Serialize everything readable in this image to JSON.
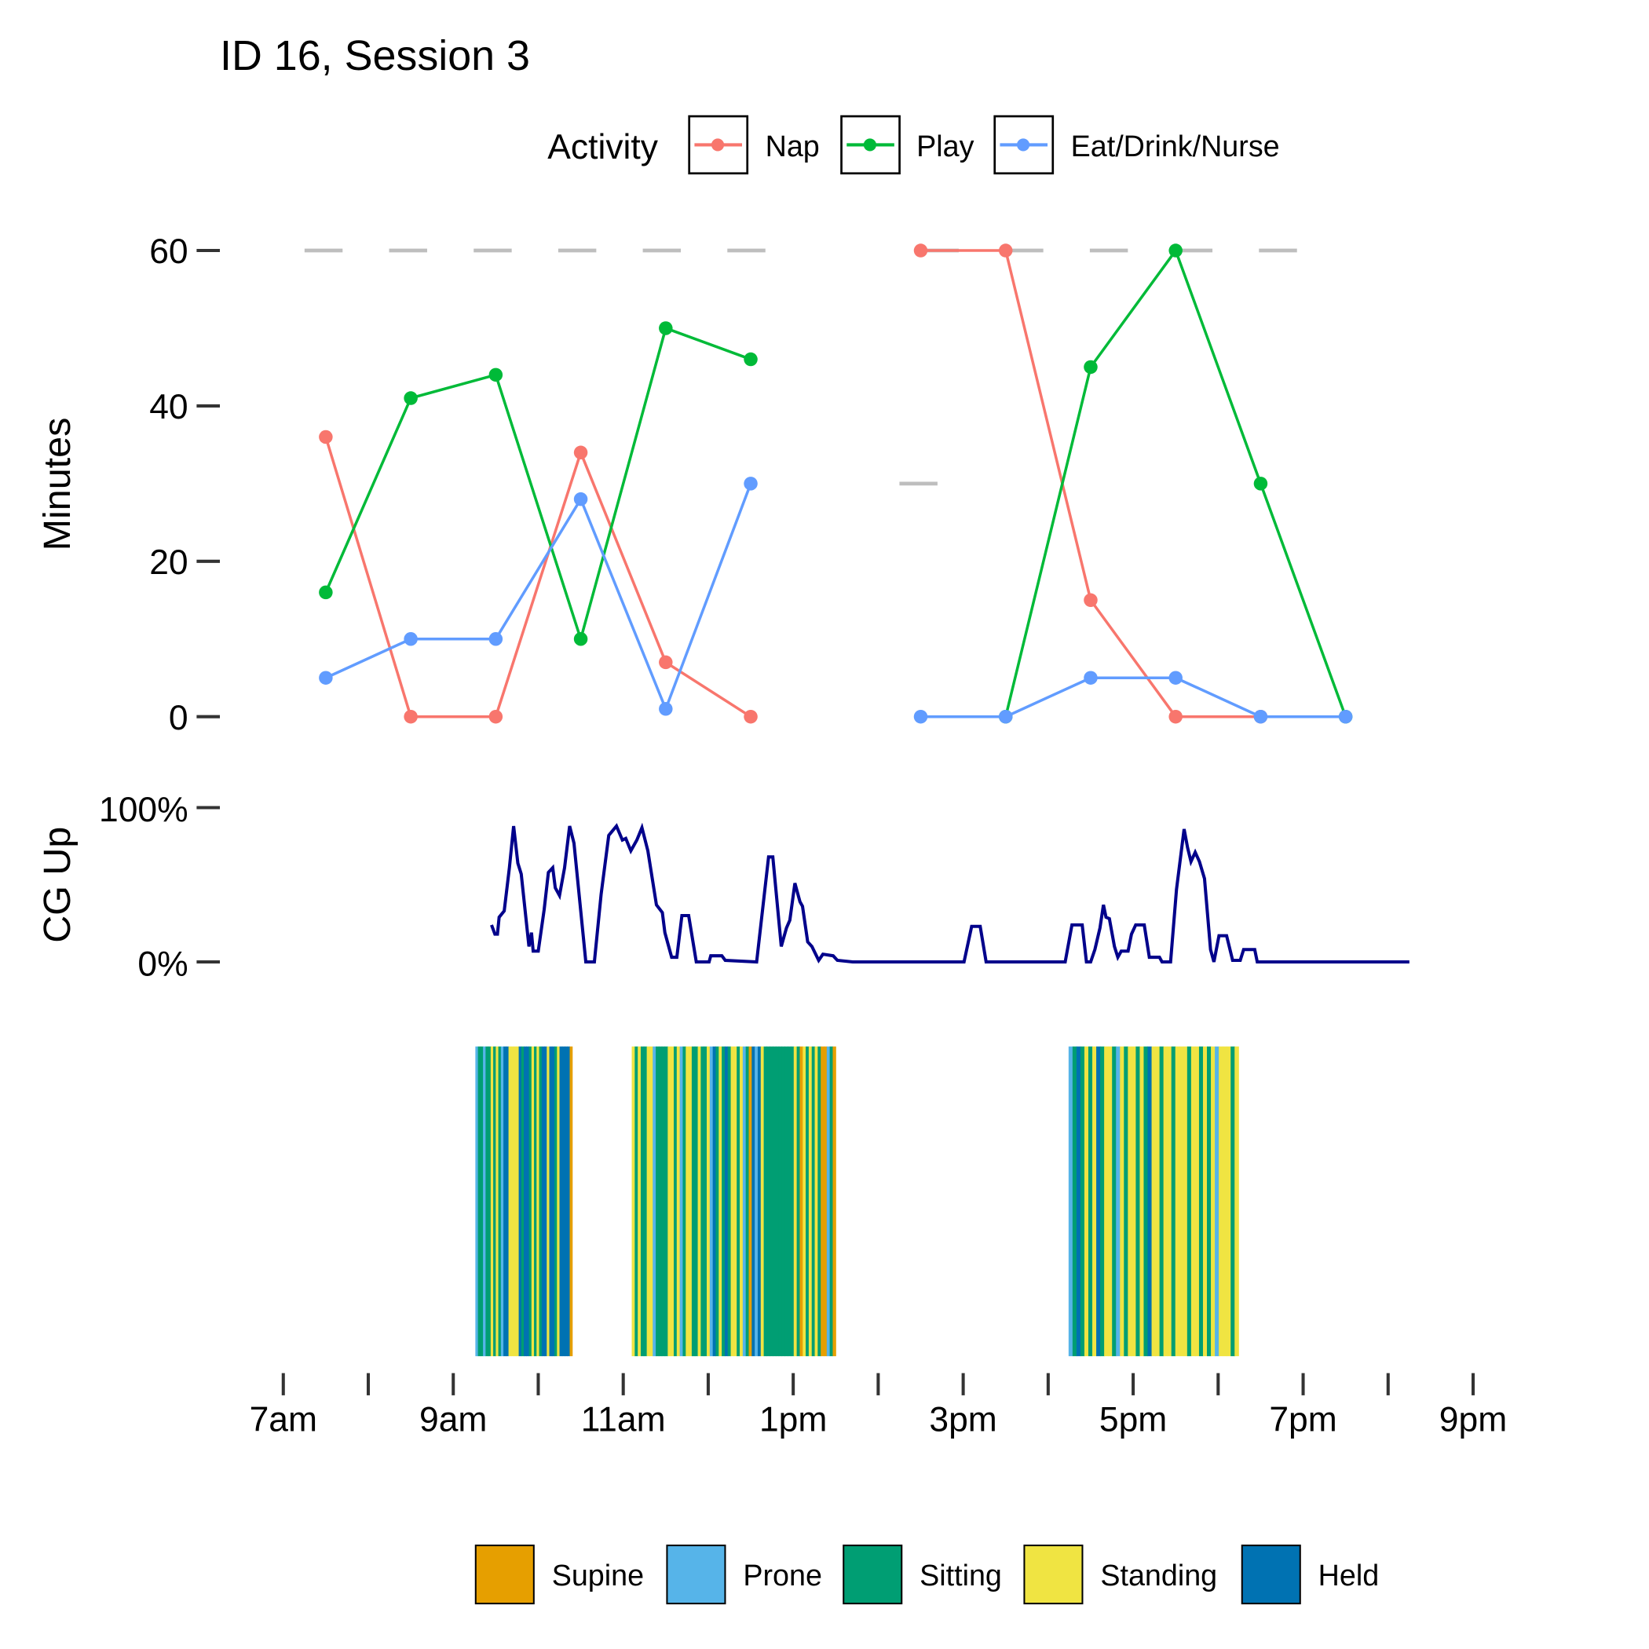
{
  "chart_data": [
    {
      "type": "line",
      "title": "ID 16, Session 3",
      "ylabel": "Minutes",
      "ylim": [
        0,
        60
      ],
      "yticks": [
        0,
        20,
        40,
        60
      ],
      "ytick_labels": [
        "0",
        "20",
        "40",
        "60"
      ],
      "legend": {
        "title": "Activity",
        "placement": "top",
        "entries": [
          "Nap",
          "Play",
          "Eat/Drink/Nurse"
        ]
      },
      "reference_lines": [
        {
          "y": 60,
          "x": [
            7.25,
            12.75
          ],
          "style": "dashed"
        },
        {
          "y": 60,
          "x": [
            14.5,
            19.25
          ],
          "style": "dashed"
        },
        {
          "y": 30,
          "x": [
            14.25,
            14.7
          ],
          "style": "dashed"
        }
      ],
      "x_unit": "hour of day",
      "series": [
        {
          "name": "Nap",
          "color": "#F8766D",
          "segments": [
            {
              "x": [
                7.5,
                8.5,
                9.5,
                10.5,
                11.5,
                12.5
              ],
              "y": [
                36,
                0,
                0,
                34,
                7,
                0
              ]
            },
            {
              "x": [
                14.5,
                15.5,
                16.5,
                17.5,
                18.5
              ],
              "y": [
                60,
                60,
                15,
                0,
                0
              ]
            }
          ]
        },
        {
          "name": "Play",
          "color": "#00BA38",
          "segments": [
            {
              "x": [
                7.5,
                8.5,
                9.5,
                10.5,
                11.5,
                12.5
              ],
              "y": [
                16,
                41,
                44,
                10,
                50,
                46
              ]
            },
            {
              "x": [
                15.5,
                16.5,
                17.5,
                18.5,
                19.5
              ],
              "y": [
                0,
                45,
                60,
                30,
                0
              ]
            }
          ]
        },
        {
          "name": "Eat/Drink/Nurse",
          "color": "#619CFF",
          "segments": [
            {
              "x": [
                7.5,
                8.5,
                9.5,
                10.5,
                11.5,
                12.5
              ],
              "y": [
                5,
                10,
                10,
                28,
                1,
                30
              ]
            },
            {
              "x": [
                14.5,
                15.5,
                16.5,
                17.5,
                18.5,
                19.5
              ],
              "y": [
                0,
                0,
                5,
                5,
                0,
                0
              ]
            }
          ]
        }
      ]
    },
    {
      "type": "line",
      "ylabel": "CG Up",
      "ylim": [
        0,
        100
      ],
      "ytick_labels": [
        "0%",
        "100%"
      ],
      "color": "#00008B",
      "x": [
        9.45,
        9.49,
        9.52,
        9.54,
        9.6,
        9.66,
        9.71,
        9.76,
        9.8,
        9.89,
        9.92,
        9.94,
        10.0,
        10.07,
        10.12,
        10.17,
        10.2,
        10.25,
        10.31,
        10.37,
        10.42,
        10.56,
        10.66,
        10.74,
        10.83,
        10.92,
        10.99,
        11.03,
        11.09,
        11.16,
        11.22,
        11.29,
        11.39,
        11.46,
        11.49,
        11.57,
        11.63,
        11.69,
        11.77,
        11.86,
        12.01,
        12.03,
        12.16,
        12.2,
        12.57,
        12.66,
        12.71,
        12.76,
        12.86,
        12.92,
        12.96,
        13.02,
        13.08,
        13.11,
        13.17,
        13.22,
        13.3,
        13.35,
        13.47,
        13.52,
        13.7,
        15.01,
        15.1,
        15.2,
        15.27,
        16.2,
        16.28,
        16.4,
        16.45,
        16.5,
        16.55,
        16.61,
        16.65,
        16.68,
        16.72,
        16.78,
        16.82,
        16.86,
        16.94,
        16.98,
        17.03,
        17.13,
        17.19,
        17.31,
        17.34,
        17.44,
        17.51,
        17.6,
        17.64,
        17.68,
        17.73,
        17.78,
        17.84,
        17.91,
        17.95,
        18.01,
        18.1,
        18.17,
        18.26,
        18.3,
        18.43,
        18.46,
        20.25
      ],
      "y": [
        24,
        18,
        18,
        29,
        33,
        61,
        88,
        64,
        57,
        10,
        19,
        7,
        7,
        34,
        58,
        61,
        48,
        43,
        61,
        88,
        77,
        0,
        0,
        44,
        82,
        88,
        79,
        80,
        72,
        79,
        87,
        72,
        37,
        32,
        19,
        3,
        3,
        30,
        30,
        0,
        0,
        4,
        4,
        1,
        0,
        44,
        68,
        68,
        10,
        22,
        27,
        51,
        39,
        36,
        13,
        10,
        1,
        5,
        4,
        1,
        0,
        0,
        23,
        23,
        0,
        0,
        24,
        24,
        0,
        0,
        8,
        22,
        37,
        29,
        28,
        10,
        3,
        7,
        7,
        18,
        24,
        24,
        3,
        3,
        0,
        0,
        47,
        86,
        74,
        65,
        71,
        65,
        54,
        8,
        0,
        17,
        17,
        1,
        1,
        8,
        8,
        0,
        0
      ]
    },
    {
      "type": "heatmap",
      "description_key": "posture",
      "categories": {
        "U": "Supine",
        "P": "Prone",
        "S": "Sitting",
        "T": "Standing",
        "H": "Held"
      },
      "colors": {
        "U": "#E69F00",
        "P": "#56B4E9",
        "S": "#009E73",
        "T": "#F0E442",
        "H": "#0072B2"
      },
      "blocks": [
        {
          "start": 9.26,
          "end": 10.4,
          "sequence": "PSSPSSTSTSPHHTTTTHSHHSTSTSHHTHHSTHHHHU"
        },
        {
          "start": 11.1,
          "end": 13.5,
          "sequence": "TSTSSTTPSSSSTTSTPSTTSSTSSTPHSTSHSTTSTPSUHPHTSSSSSSSSSSTSUTSTSTSUUPSU"
        },
        {
          "start": 16.24,
          "end": 18.24,
          "sequence": "PSHSTSTHSTTSPTSTTSTSHTTSTTSTTTSTTSTSTPTTTST"
        }
      ],
      "legend": {
        "placement": "bottom",
        "entries": [
          "Supine",
          "Prone",
          "Sitting",
          "Standing",
          "Held"
        ]
      }
    }
  ],
  "x_axis": {
    "range": [
      7,
      21
    ],
    "ticks": [
      7,
      8,
      9,
      10,
      11,
      12,
      13,
      14,
      15,
      16,
      17,
      18,
      19,
      20,
      21
    ],
    "labels": [
      {
        "at": 7,
        "text": "7am"
      },
      {
        "at": 9,
        "text": "9am"
      },
      {
        "at": 11,
        "text": "11am"
      },
      {
        "at": 13,
        "text": "1pm"
      },
      {
        "at": 15,
        "text": "3pm"
      },
      {
        "at": 17,
        "text": "5pm"
      },
      {
        "at": 19,
        "text": "7pm"
      },
      {
        "at": 21,
        "text": "9pm"
      }
    ]
  }
}
